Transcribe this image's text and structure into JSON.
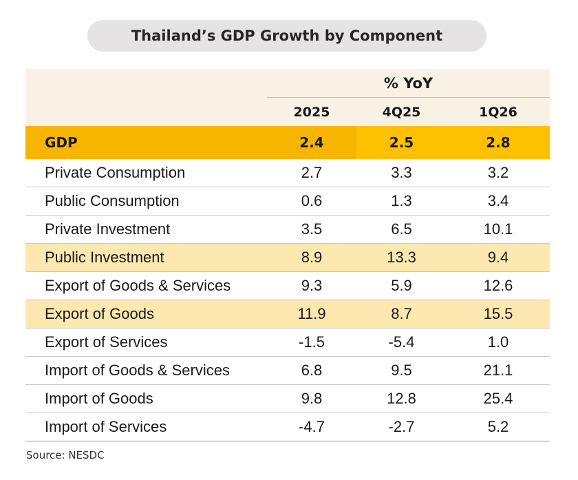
{
  "chart_data": {
    "type": "table",
    "title": "Thailand’s GDP Growth by Component",
    "unit_header": "% YoY",
    "columns": [
      "2025",
      "4Q25",
      "1Q26"
    ],
    "rows": [
      {
        "label": "GDP",
        "values": [
          "2.4",
          "2.5",
          "2.8"
        ]
      },
      {
        "label": "Private Consumption",
        "values": [
          "2.7",
          "3.3",
          "3.2"
        ]
      },
      {
        "label": "Public Consumption",
        "values": [
          "0.6",
          "1.3",
          "3.4"
        ]
      },
      {
        "label": "Private Investment",
        "values": [
          "3.5",
          "6.5",
          "10.1"
        ]
      },
      {
        "label": "Public Investment",
        "values": [
          "8.9",
          "13.3",
          "9.4"
        ]
      },
      {
        "label": "Export of Goods & Services",
        "values": [
          "9.3",
          "5.9",
          "12.6"
        ]
      },
      {
        "label": "Export of Goods",
        "values": [
          "11.9",
          "8.7",
          "15.5"
        ]
      },
      {
        "label": "Export of Services",
        "values": [
          "-1.5",
          "-5.4",
          "1.0"
        ]
      },
      {
        "label": "Import of Goods & Services",
        "values": [
          "6.8",
          "9.5",
          "21.1"
        ]
      },
      {
        "label": "Import of Goods",
        "values": [
          "9.8",
          "12.8",
          "25.4"
        ]
      },
      {
        "label": "Import of Services",
        "values": [
          "-4.7",
          "-2.7",
          "5.2"
        ]
      }
    ],
    "highlighted_rows": [
      "Public Investment",
      "Export of Goods"
    ],
    "source": "Source: NESDC",
    "colors": {
      "header_bg": "#f8f2e4",
      "gdp_row": "#f7b500",
      "gdp_highlight": "#ffc000",
      "highlight_row": "#fde8b0",
      "title_pill": "#e5e3e4"
    }
  }
}
